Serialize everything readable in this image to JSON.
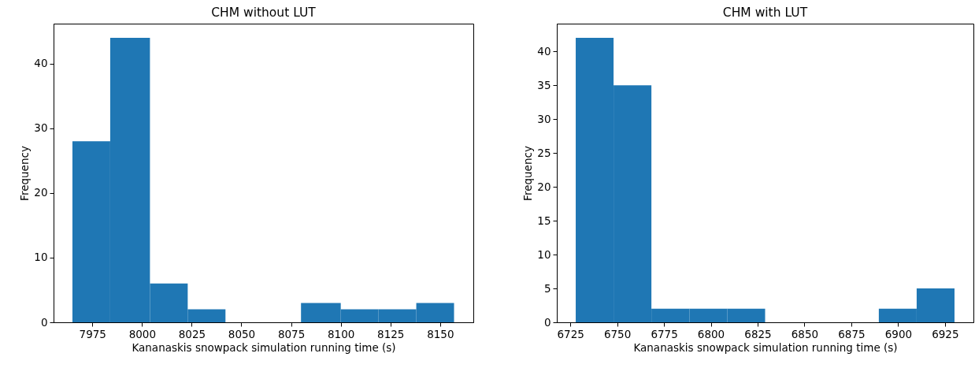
{
  "chart_data": [
    {
      "type": "histogram",
      "title": "CHM without LUT",
      "xlabel": "Kananaskis snowpack simulation running time (s)",
      "ylabel": "Frequency",
      "bins": [
        7965,
        7984,
        8004,
        8023,
        8042,
        8080,
        8100,
        8119,
        8138,
        8157
      ],
      "values": [
        28,
        44,
        6,
        2,
        0,
        3,
        2,
        2,
        3
      ],
      "color": "#1f77b4",
      "xlim": [
        7955.5,
        8166.7
      ],
      "xticks": [
        7975,
        8000,
        8025,
        8050,
        8075,
        8100,
        8125,
        8150
      ],
      "ylim": [
        0,
        46.2
      ],
      "yticks": [
        0,
        10,
        20,
        30,
        40
      ],
      "grid": false
    },
    {
      "type": "histogram",
      "title": "CHM with LUT",
      "xlabel": "Kananaskis snowpack simulation running time (s)",
      "ylabel": "Frequency",
      "bins": [
        6727.9,
        6748.1,
        6768.3,
        6788.6,
        6808.8,
        6829.0,
        6889.7,
        6909.9,
        6930.1
      ],
      "values": [
        42,
        35,
        2,
        2,
        2,
        0,
        2,
        5
      ],
      "color": "#1f77b4",
      "xlim": [
        6717.8,
        6940.2
      ],
      "xticks": [
        6725,
        6750,
        6775,
        6800,
        6825,
        6850,
        6875,
        6900,
        6925
      ],
      "ylim": [
        0,
        44.1
      ],
      "yticks": [
        0,
        5,
        10,
        15,
        20,
        25,
        30,
        35,
        40
      ],
      "grid": false
    }
  ]
}
